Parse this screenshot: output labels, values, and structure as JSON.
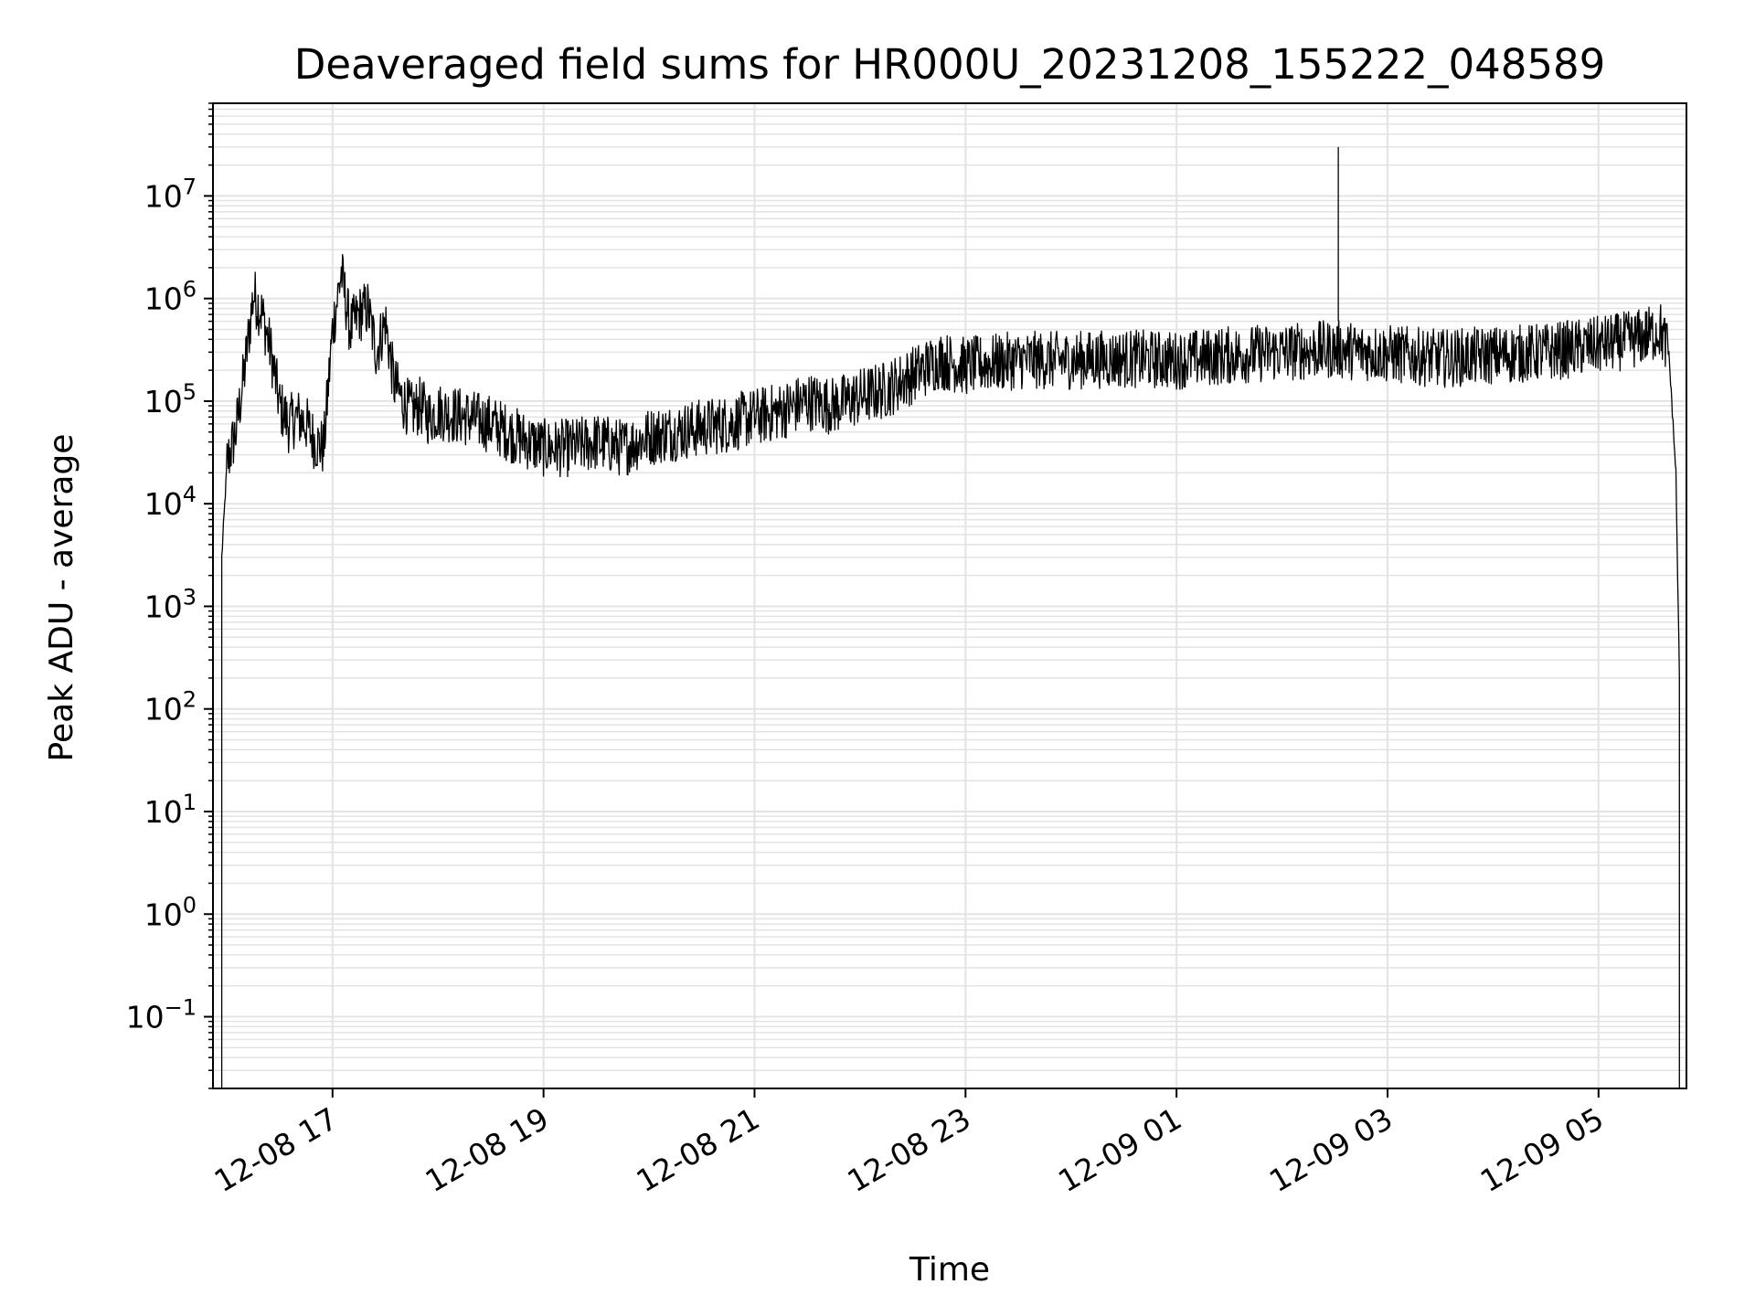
{
  "chart_data": {
    "type": "line",
    "title": "Deaveraged field sums for HR000U_20231208_155222_048589",
    "xlabel": "Time",
    "ylabel": "Peak ADU - average",
    "xscale": "time",
    "yscale": "log",
    "xlim": [
      "2023-12-08 15:52",
      "2023-12-09 05:50"
    ],
    "ylim": [
      0.02,
      80000000
    ],
    "grid": true,
    "x_ticks": [
      "12-08 17",
      "12-08 19",
      "12-08 21",
      "12-08 23",
      "12-09 01",
      "12-09 03",
      "12-09 05"
    ],
    "y_tick_exponents": [
      "7",
      "6",
      "5",
      "4",
      "3",
      "2",
      "1",
      "0",
      "−1"
    ],
    "y_tick_base": "10",
    "line_color": "#000000",
    "series": [
      {
        "x": [
          "2023-12-08 15:57",
          "2023-12-08 16:00",
          "2023-12-08 16:05",
          "2023-12-08 16:10",
          "2023-12-08 16:15",
          "2023-12-08 16:20",
          "2023-12-08 16:25",
          "2023-12-08 16:30",
          "2023-12-08 16:35",
          "2023-12-08 16:40",
          "2023-12-08 16:45",
          "2023-12-08 16:50",
          "2023-12-08 16:55",
          "2023-12-08 17:00",
          "2023-12-08 17:05",
          "2023-12-08 17:10",
          "2023-12-08 17:15",
          "2023-12-08 17:20",
          "2023-12-08 17:25",
          "2023-12-08 17:30",
          "2023-12-08 17:35",
          "2023-12-08 17:40",
          "2023-12-08 17:45",
          "2023-12-08 17:50",
          "2023-12-08 17:55",
          "2023-12-08 18:00",
          "2023-12-08 18:15",
          "2023-12-08 18:30",
          "2023-12-08 18:45",
          "2023-12-08 19:00",
          "2023-12-08 19:15",
          "2023-12-08 19:30",
          "2023-12-08 19:45",
          "2023-12-08 20:00",
          "2023-12-08 20:15",
          "2023-12-08 20:30",
          "2023-12-08 20:45",
          "2023-12-08 21:00",
          "2023-12-08 21:15",
          "2023-12-08 21:30",
          "2023-12-08 21:45",
          "2023-12-08 22:00",
          "2023-12-08 22:15",
          "2023-12-08 22:30",
          "2023-12-08 22:45",
          "2023-12-08 23:00",
          "2023-12-08 23:30",
          "2023-12-09 00:00",
          "2023-12-09 00:30",
          "2023-12-09 01:00",
          "2023-12-09 01:30",
          "2023-12-09 02:00",
          "2023-12-09 02:30",
          "2023-12-09 03:00",
          "2023-12-09 03:30",
          "2023-12-09 04:00",
          "2023-12-09 04:30",
          "2023-12-09 05:00",
          "2023-12-09 05:20",
          "2023-12-09 05:30",
          "2023-12-09 05:35",
          "2023-12-09 05:40",
          "2023-12-09 05:44",
          "2023-12-09 05:46"
        ],
        "y": [
          3000,
          25000,
          50000,
          200000,
          1100000,
          700000,
          300000,
          90000,
          60000,
          70000,
          60000,
          40000,
          35000,
          500000,
          1800000,
          500000,
          700000,
          800000,
          300000,
          600000,
          150000,
          100000,
          80000,
          90000,
          70000,
          80000,
          70000,
          60000,
          45000,
          35000,
          35000,
          40000,
          35000,
          45000,
          50000,
          55000,
          60000,
          70000,
          80000,
          100000,
          90000,
          110000,
          130000,
          180000,
          250000,
          220000,
          250000,
          250000,
          260000,
          250000,
          280000,
          300000,
          320000,
          290000,
          260000,
          280000,
          300000,
          350000,
          400000,
          450000,
          500000,
          300000,
          20000,
          200
        ]
      }
    ],
    "spike": {
      "x": "2023-12-09 02:32",
      "y": 30000000
    },
    "noise_band_factor": 3
  }
}
